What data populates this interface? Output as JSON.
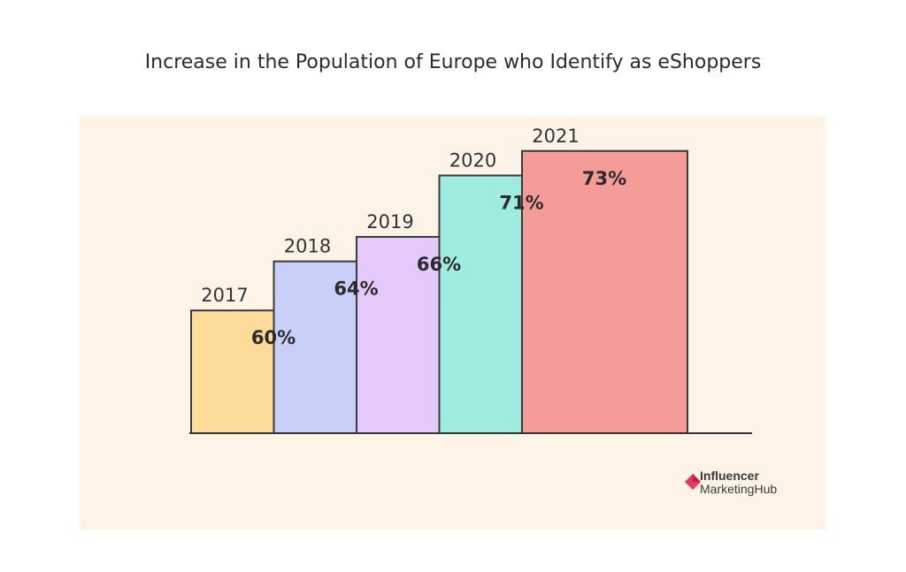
{
  "title": "Increase in the Population of Europe who Identify as eShoppers",
  "colors": {
    "panel_bg": "#fdf4e7",
    "axis": "#333333",
    "bar_stroke": "#3a3a3a",
    "brand_accent": "#e8375f"
  },
  "chart_data": {
    "type": "bar",
    "categories": [
      "2017",
      "2018",
      "2019",
      "2020",
      "2021"
    ],
    "values": [
      60,
      64,
      66,
      71,
      73
    ],
    "value_labels": [
      "60%",
      "64%",
      "66%",
      "71%",
      "73%"
    ],
    "bar_colors": [
      "#fddc9a",
      "#c8cff8",
      "#e6c9fb",
      "#9eece0",
      "#f59c98"
    ],
    "ylim": [
      0,
      100
    ],
    "title": "Increase in the Population of Europe who Identify as eShoppers",
    "xlabel": "",
    "ylabel": "",
    "grid": false
  },
  "branding": {
    "line1": "Influencer",
    "line2": "MarketingHub"
  }
}
